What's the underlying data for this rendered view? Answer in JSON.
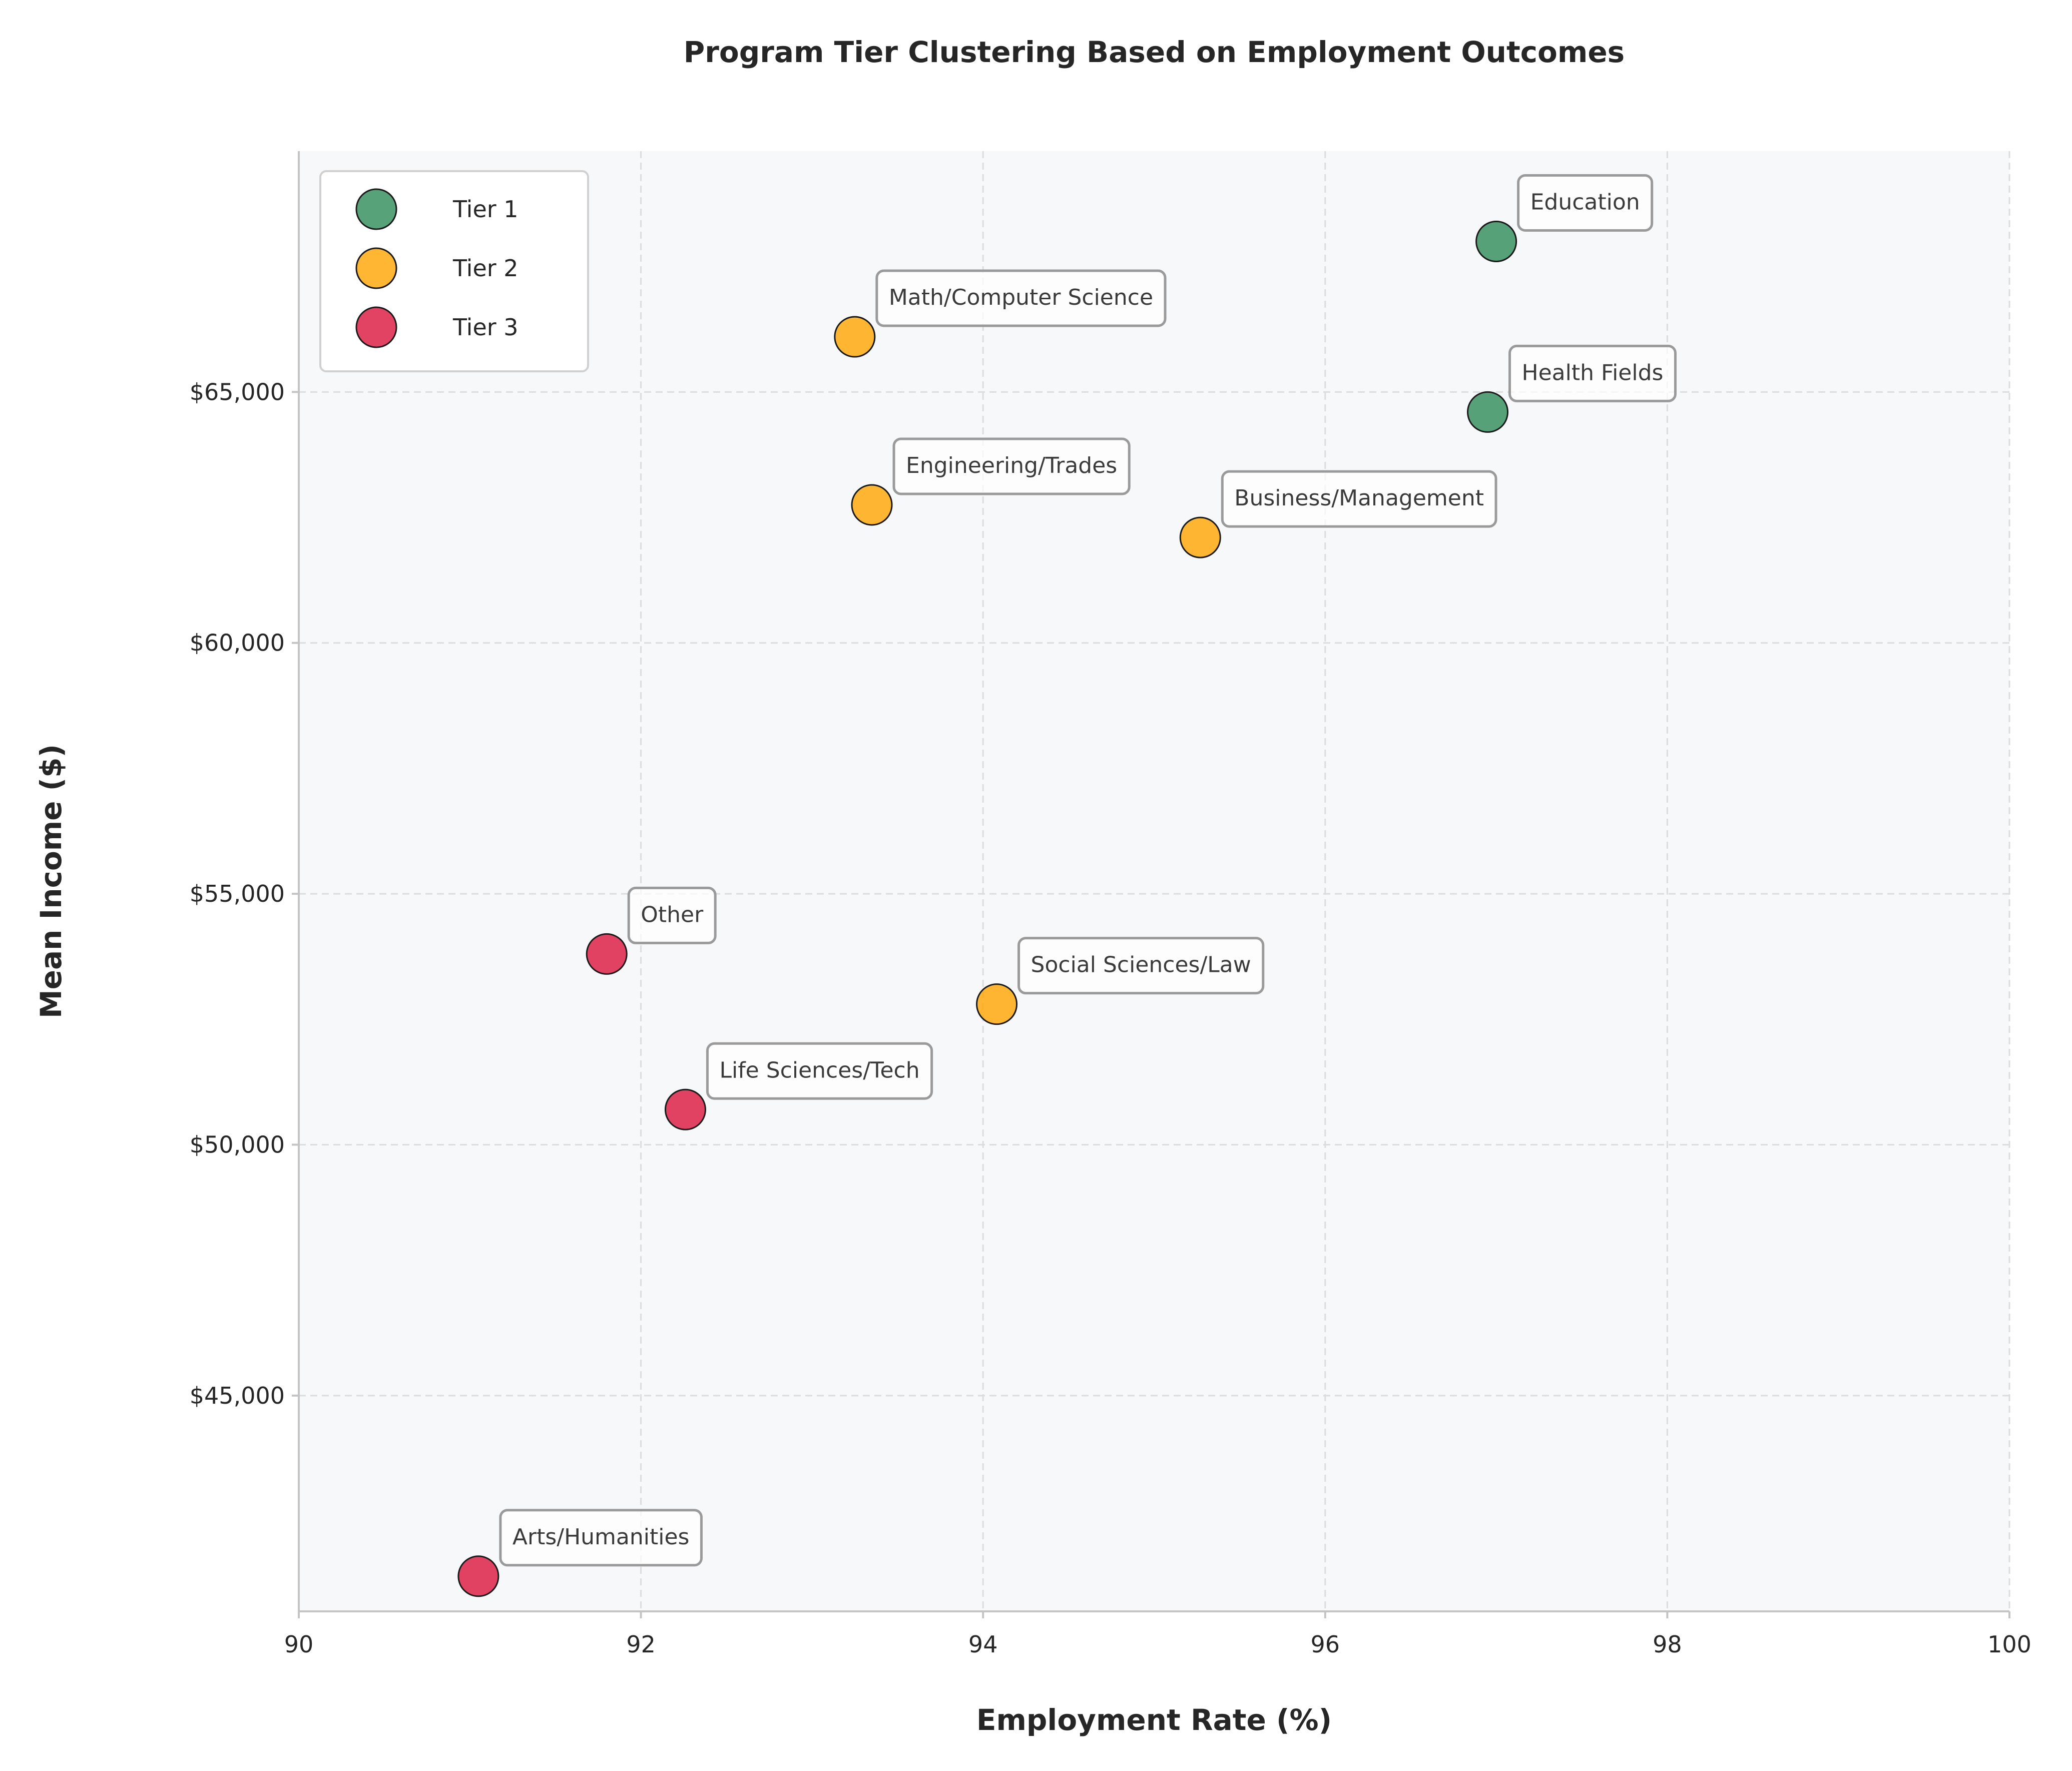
{
  "chart_data": {
    "type": "scatter",
    "title": "Program Tier Clustering Based on Employment Outcomes",
    "xlabel": "Employment Rate (%)",
    "ylabel": "Mean Income ($)",
    "xlim": [
      90,
      100
    ],
    "ylim": [
      40700,
      69800
    ],
    "x_ticks": [
      90,
      92,
      94,
      96,
      98,
      100
    ],
    "y_ticks": [
      45000,
      50000,
      55000,
      60000,
      65000
    ],
    "y_tick_labels": [
      "$45,000",
      "$50,000",
      "$55,000",
      "$60,000",
      "$65,000"
    ],
    "grid": true,
    "legend_position": "top-left",
    "series": [
      {
        "name": "Tier 1",
        "color": "#2e8b57",
        "points": [
          {
            "label": "Education",
            "x": 97.0,
            "y": 68000
          },
          {
            "label": "Health Fields",
            "x": 96.95,
            "y": 64600
          }
        ]
      },
      {
        "name": "Tier 2",
        "color": "#ffa500",
        "points": [
          {
            "label": "Math/Computer Science",
            "x": 93.25,
            "y": 66100
          },
          {
            "label": "Engineering/Trades",
            "x": 93.35,
            "y": 62750
          },
          {
            "label": "Business/Management",
            "x": 95.27,
            "y": 62100
          },
          {
            "label": "Social Sciences/Law",
            "x": 94.08,
            "y": 52800
          }
        ]
      },
      {
        "name": "Tier 3",
        "color": "#dc143c",
        "points": [
          {
            "label": "Other",
            "x": 91.8,
            "y": 53800
          },
          {
            "label": "Life Sciences/Tech",
            "x": 92.26,
            "y": 50700
          },
          {
            "label": "Arts/Humanities",
            "x": 91.05,
            "y": 41400
          }
        ]
      }
    ]
  }
}
